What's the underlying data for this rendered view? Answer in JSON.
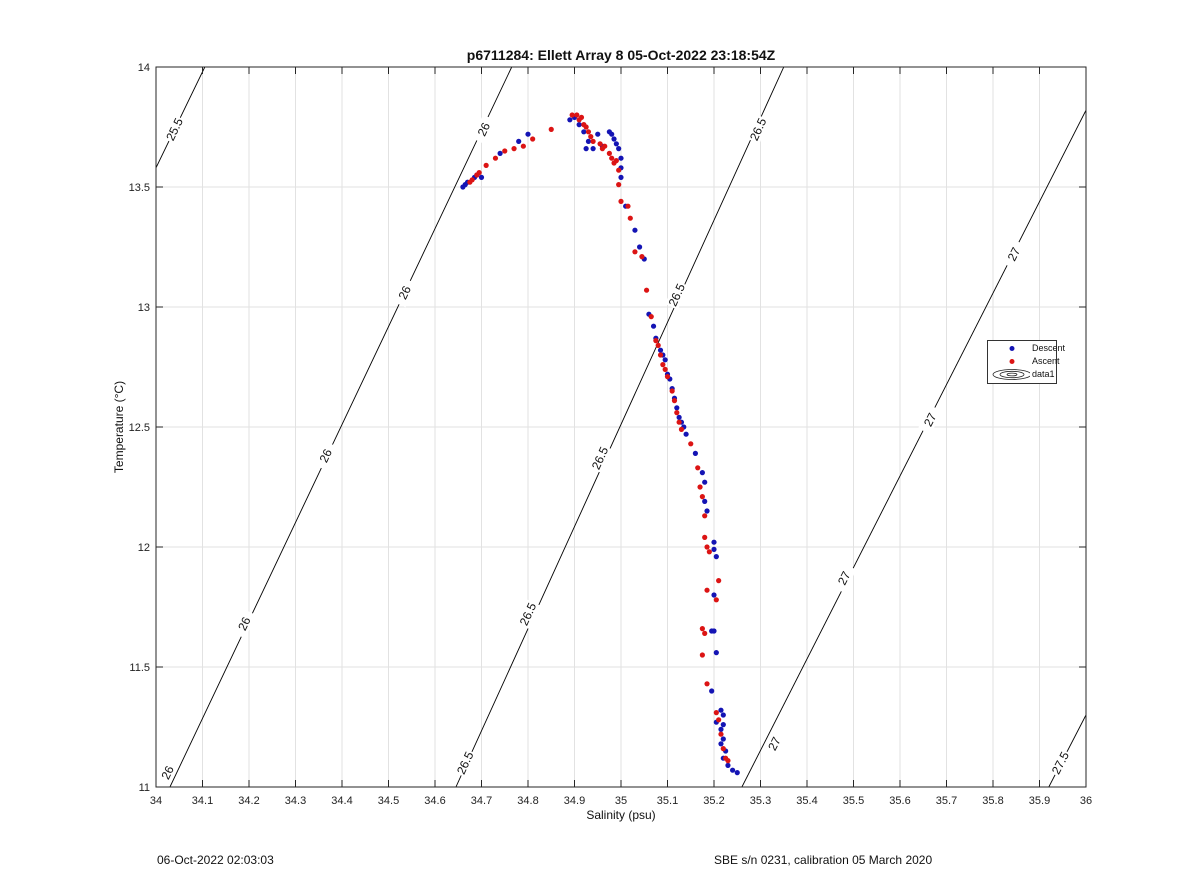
{
  "footer": {
    "left": "06-Oct-2022 02:03:03",
    "right": "SBE s/n 0231, calibration 05 March 2020"
  },
  "colors": {
    "descent": "#1414b4",
    "ascent": "#dc1414",
    "contour": "#000000",
    "grid": "#e2e2e2"
  },
  "chart_data": {
    "type": "scatter",
    "title": "p6711284: Ellett Array 8 05-Oct-2022 23:18:54Z",
    "xlabel": "Salinity (psu)",
    "ylabel": "Temperature (°C)",
    "xlim": [
      34,
      36
    ],
    "ylim": [
      11,
      14
    ],
    "x_ticks": [
      "34",
      "34.1",
      "34.2",
      "34.3",
      "34.4",
      "34.5",
      "34.6",
      "34.7",
      "34.8",
      "34.9",
      "35",
      "35.1",
      "35.2",
      "35.3",
      "35.4",
      "35.5",
      "35.6",
      "35.7",
      "35.8",
      "35.9",
      "36"
    ],
    "y_ticks": [
      "11",
      "11.5",
      "12",
      "12.5",
      "13",
      "13.5",
      "14"
    ],
    "grid": true,
    "legend": {
      "placement": "right",
      "entries": [
        "Descent",
        "Ascent",
        "data1"
      ]
    },
    "contours": [
      {
        "level": "25.5",
        "points": [
          [
            34.0,
            13.58
          ],
          [
            34.105,
            14.0
          ]
        ],
        "labels": [
          {
            "text": "25.5",
            "x": 34.04,
            "y": 13.74
          }
        ]
      },
      {
        "level": "26",
        "points": [
          [
            34.03,
            11.0
          ],
          [
            34.765,
            14.0
          ]
        ],
        "labels": [
          {
            "text": "26",
            "x": 34.705,
            "y": 13.74
          },
          {
            "text": "26",
            "x": 34.535,
            "y": 13.06
          },
          {
            "text": "26",
            "x": 34.365,
            "y": 12.38
          },
          {
            "text": "26",
            "x": 34.19,
            "y": 11.68
          },
          {
            "text": "26",
            "x": 34.025,
            "y": 11.06
          }
        ]
      },
      {
        "level": "26.5",
        "points": [
          [
            34.645,
            11.0
          ],
          [
            35.35,
            14.0
          ]
        ],
        "labels": [
          {
            "text": "26.5",
            "x": 35.295,
            "y": 13.74
          },
          {
            "text": "26.5",
            "x": 35.12,
            "y": 13.05
          },
          {
            "text": "26.5",
            "x": 34.955,
            "y": 12.37
          },
          {
            "text": "26.5",
            "x": 34.8,
            "y": 11.72
          },
          {
            "text": "26.5",
            "x": 34.665,
            "y": 11.1
          }
        ]
      },
      {
        "level": "27",
        "points": [
          [
            35.26,
            11.0
          ],
          [
            36.0,
            13.82
          ]
        ],
        "labels": [
          {
            "text": "27",
            "x": 35.845,
            "y": 13.22
          },
          {
            "text": "27",
            "x": 35.665,
            "y": 12.53
          },
          {
            "text": "27",
            "x": 35.48,
            "y": 11.87
          },
          {
            "text": "27",
            "x": 35.33,
            "y": 11.18
          }
        ]
      },
      {
        "level": "27.5",
        "points": [
          [
            35.92,
            11.0
          ],
          [
            36.0,
            11.3
          ]
        ],
        "labels": [
          {
            "text": "27.5",
            "x": 35.945,
            "y": 11.1
          }
        ]
      }
    ],
    "series": [
      {
        "name": "Descent",
        "points": [
          [
            34.66,
            13.5
          ],
          [
            34.665,
            13.51
          ],
          [
            34.67,
            13.52
          ],
          [
            34.685,
            13.54
          ],
          [
            34.69,
            13.55
          ],
          [
            34.7,
            13.54
          ],
          [
            34.74,
            13.64
          ],
          [
            34.78,
            13.69
          ],
          [
            34.8,
            13.72
          ],
          [
            34.89,
            13.78
          ],
          [
            34.9,
            13.79
          ],
          [
            34.91,
            13.76
          ],
          [
            34.92,
            13.73
          ],
          [
            34.93,
            13.69
          ],
          [
            34.925,
            13.66
          ],
          [
            34.94,
            13.66
          ],
          [
            34.95,
            13.72
          ],
          [
            34.96,
            13.67
          ],
          [
            34.975,
            13.73
          ],
          [
            34.98,
            13.72
          ],
          [
            34.985,
            13.7
          ],
          [
            34.99,
            13.68
          ],
          [
            34.995,
            13.66
          ],
          [
            35.0,
            13.62
          ],
          [
            35.0,
            13.58
          ],
          [
            35.0,
            13.54
          ],
          [
            35.01,
            13.42
          ],
          [
            35.03,
            13.32
          ],
          [
            35.04,
            13.25
          ],
          [
            35.05,
            13.2
          ],
          [
            35.06,
            12.97
          ],
          [
            35.07,
            12.92
          ],
          [
            35.075,
            12.87
          ],
          [
            35.085,
            12.82
          ],
          [
            35.09,
            12.8
          ],
          [
            35.095,
            12.78
          ],
          [
            35.1,
            12.72
          ],
          [
            35.105,
            12.7
          ],
          [
            35.11,
            12.66
          ],
          [
            35.115,
            12.62
          ],
          [
            35.12,
            12.58
          ],
          [
            35.125,
            12.54
          ],
          [
            35.13,
            12.52
          ],
          [
            35.135,
            12.5
          ],
          [
            35.14,
            12.47
          ],
          [
            35.16,
            12.39
          ],
          [
            35.175,
            12.31
          ],
          [
            35.18,
            12.27
          ],
          [
            35.18,
            12.19
          ],
          [
            35.185,
            12.15
          ],
          [
            35.2,
            12.02
          ],
          [
            35.2,
            11.99
          ],
          [
            35.205,
            11.96
          ],
          [
            35.2,
            11.8
          ],
          [
            35.195,
            11.65
          ],
          [
            35.2,
            11.65
          ],
          [
            35.205,
            11.56
          ],
          [
            35.195,
            11.4
          ],
          [
            35.205,
            11.27
          ],
          [
            35.215,
            11.32
          ],
          [
            35.22,
            11.3
          ],
          [
            35.22,
            11.26
          ],
          [
            35.215,
            11.24
          ],
          [
            35.22,
            11.2
          ],
          [
            35.215,
            11.18
          ],
          [
            35.225,
            11.15
          ],
          [
            35.22,
            11.12
          ],
          [
            35.23,
            11.09
          ],
          [
            35.24,
            11.07
          ],
          [
            35.25,
            11.06
          ]
        ]
      },
      {
        "name": "Ascent",
        "points": [
          [
            34.675,
            13.52
          ],
          [
            34.68,
            13.53
          ],
          [
            34.69,
            13.55
          ],
          [
            34.695,
            13.56
          ],
          [
            34.71,
            13.59
          ],
          [
            34.73,
            13.62
          ],
          [
            34.75,
            13.65
          ],
          [
            34.77,
            13.66
          ],
          [
            34.79,
            13.67
          ],
          [
            34.81,
            13.7
          ],
          [
            34.85,
            13.74
          ],
          [
            34.895,
            13.8
          ],
          [
            34.905,
            13.8
          ],
          [
            34.91,
            13.78
          ],
          [
            34.915,
            13.79
          ],
          [
            34.92,
            13.76
          ],
          [
            34.925,
            13.75
          ],
          [
            34.93,
            13.73
          ],
          [
            34.935,
            13.71
          ],
          [
            34.94,
            13.69
          ],
          [
            34.955,
            13.68
          ],
          [
            34.96,
            13.66
          ],
          [
            34.965,
            13.67
          ],
          [
            34.975,
            13.64
          ],
          [
            34.98,
            13.62
          ],
          [
            34.985,
            13.6
          ],
          [
            34.99,
            13.61
          ],
          [
            34.995,
            13.57
          ],
          [
            34.995,
            13.51
          ],
          [
            35.0,
            13.44
          ],
          [
            35.015,
            13.42
          ],
          [
            35.02,
            13.37
          ],
          [
            35.03,
            13.23
          ],
          [
            35.045,
            13.21
          ],
          [
            35.055,
            13.07
          ],
          [
            35.065,
            12.96
          ],
          [
            35.075,
            12.86
          ],
          [
            35.08,
            12.84
          ],
          [
            35.085,
            12.8
          ],
          [
            35.09,
            12.76
          ],
          [
            35.095,
            12.74
          ],
          [
            35.1,
            12.71
          ],
          [
            35.11,
            12.65
          ],
          [
            35.115,
            12.61
          ],
          [
            35.12,
            12.56
          ],
          [
            35.125,
            12.52
          ],
          [
            35.13,
            12.49
          ],
          [
            35.15,
            12.43
          ],
          [
            35.165,
            12.33
          ],
          [
            35.17,
            12.25
          ],
          [
            35.175,
            12.21
          ],
          [
            35.18,
            12.13
          ],
          [
            35.18,
            12.04
          ],
          [
            35.185,
            12.0
          ],
          [
            35.19,
            11.98
          ],
          [
            35.21,
            11.86
          ],
          [
            35.205,
            11.78
          ],
          [
            35.185,
            11.82
          ],
          [
            35.175,
            11.66
          ],
          [
            35.18,
            11.64
          ],
          [
            35.175,
            11.55
          ],
          [
            35.185,
            11.43
          ],
          [
            35.205,
            11.31
          ],
          [
            35.21,
            11.28
          ],
          [
            35.215,
            11.22
          ],
          [
            35.22,
            11.16
          ],
          [
            35.225,
            11.12
          ],
          [
            35.23,
            11.11
          ]
        ]
      }
    ]
  }
}
